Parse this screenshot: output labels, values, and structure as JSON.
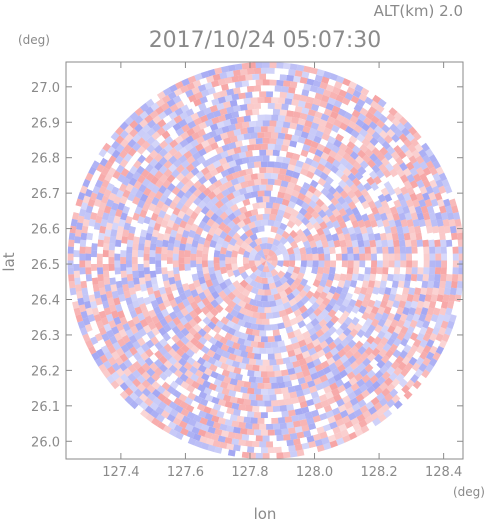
{
  "chart_data": {
    "type": "heatmap",
    "title": "2017/10/24 05:07:30",
    "subtitle": "ALT(km) 2.0",
    "xlabel": "lon",
    "ylabel": "lat",
    "x_unit": "(deg)",
    "y_unit": "(deg)",
    "xlim": [
      127.23,
      128.46
    ],
    "ylim": [
      25.95,
      27.07
    ],
    "xticks": [
      "127.4",
      "127.6",
      "127.8",
      "128.0",
      "128.2",
      "128.4"
    ],
    "xtick_values": [
      127.4,
      127.6,
      127.8,
      128.0,
      128.2,
      128.4
    ],
    "yticks": [
      "27.0",
      "26.9",
      "26.8",
      "26.7",
      "26.6",
      "26.5",
      "26.4",
      "26.3",
      "26.2",
      "26.1",
      "26.0"
    ],
    "ytick_values": [
      27.0,
      26.9,
      26.8,
      26.7,
      26.6,
      26.5,
      26.4,
      26.3,
      26.2,
      26.1,
      26.0
    ],
    "radar_center": {
      "lon": 127.85,
      "lat": 26.51
    },
    "radar_range_deg_lat": 0.56,
    "colors": {
      "positive": "#f4a7a7",
      "negative": "#a9acf2",
      "neutral": "#ffffff",
      "axis": "#8a8a8a"
    }
  }
}
